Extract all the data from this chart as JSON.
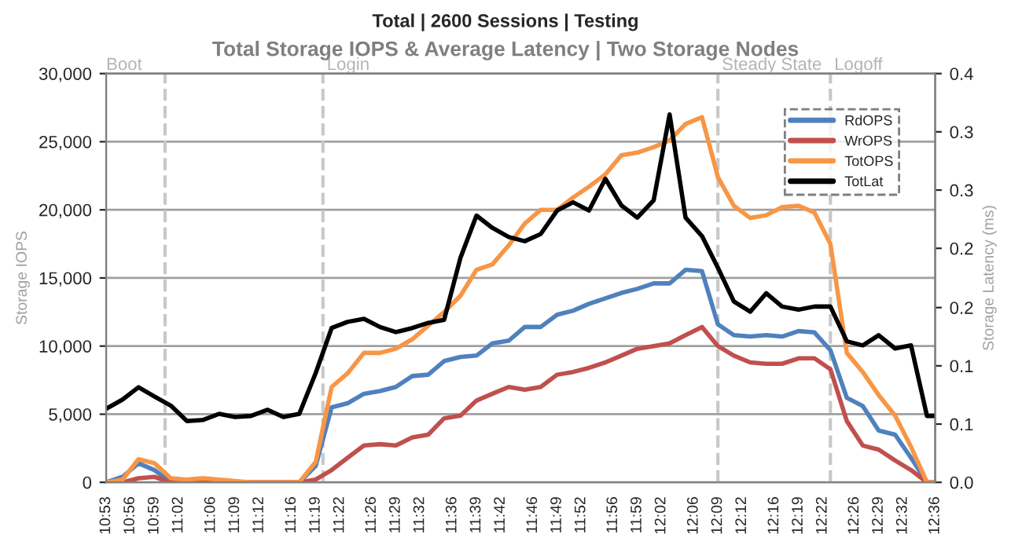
{
  "chart_data": {
    "type": "line",
    "title": "Total | 2600 Sessions | Testing",
    "subtitle": "Total Storage IOPS & Average Latency | Two Storage Nodes",
    "ylabel": "Storage IOPS",
    "y2label": "Storage Latency (ms)",
    "x": [
      10.883,
      10.917,
      10.95,
      10.983,
      11.017,
      11.05,
      11.083,
      11.117,
      11.15,
      11.183,
      11.217,
      11.25,
      11.283,
      11.317,
      11.35,
      11.383,
      11.417,
      11.45,
      11.483,
      11.517,
      11.55,
      11.583,
      11.617,
      11.65,
      11.683,
      11.717,
      11.75,
      11.783,
      11.817,
      11.85,
      11.883,
      11.917,
      11.95,
      11.983,
      12.017,
      12.05,
      12.083,
      12.117,
      12.15,
      12.183,
      12.217,
      12.25,
      12.283,
      12.317,
      12.35,
      12.383,
      12.417,
      12.45,
      12.483,
      12.517,
      12.55,
      12.583,
      12.6
    ],
    "series": [
      {
        "name": "RdOPS",
        "color": "#4f81bd",
        "values": [
          0,
          400,
          1400,
          900,
          0,
          0,
          0,
          0,
          0,
          0,
          0,
          0,
          0,
          1200,
          5500,
          5800,
          6500,
          6700,
          7000,
          7800,
          7900,
          8900,
          9200,
          9300,
          10200,
          10400,
          11400,
          11400,
          12300,
          12600,
          13100,
          13500,
          13900,
          14200,
          14600,
          14600,
          15600,
          15500,
          11600,
          10800,
          10700,
          10800,
          10700,
          11100,
          11000,
          9700,
          6200,
          5600,
          3800,
          3500,
          1800,
          0,
          0
        ]
      },
      {
        "name": "WrOPS",
        "color": "#c0504d",
        "values": [
          0,
          0,
          300,
          400,
          0,
          0,
          0,
          0,
          0,
          0,
          0,
          0,
          0,
          200,
          900,
          1800,
          2700,
          2800,
          2700,
          3300,
          3500,
          4700,
          4900,
          6000,
          6500,
          7000,
          6800,
          7000,
          7900,
          8100,
          8400,
          8800,
          9300,
          9800,
          10000,
          10200,
          10800,
          11400,
          10000,
          9300,
          8800,
          8700,
          8700,
          9100,
          9100,
          8300,
          4500,
          2700,
          2400,
          1600,
          900,
          0,
          0
        ]
      },
      {
        "name": "TotOPS",
        "color": "#f79646",
        "values": [
          0,
          200,
          1700,
          1400,
          300,
          200,
          300,
          200,
          100,
          0,
          0,
          0,
          0,
          1500,
          7000,
          8000,
          9500,
          9500,
          9800,
          10500,
          11500,
          12500,
          13700,
          15600,
          16000,
          17400,
          19000,
          20000,
          20000,
          20900,
          21700,
          22600,
          24000,
          24200,
          24600,
          25100,
          26300,
          26800,
          22400,
          20300,
          19400,
          19600,
          20200,
          20300,
          19800,
          17500,
          9500,
          8100,
          6400,
          4900,
          2600,
          0,
          0
        ]
      },
      {
        "name": "TotLat",
        "color": "#000000",
        "axis": "y2",
        "values": [
          0.072,
          0.081,
          0.093,
          0.084,
          0.075,
          0.06,
          0.061,
          0.067,
          0.064,
          0.065,
          0.071,
          0.064,
          0.067,
          0.107,
          0.151,
          0.157,
          0.16,
          0.152,
          0.147,
          0.151,
          0.156,
          0.159,
          0.22,
          0.261,
          0.249,
          0.24,
          0.236,
          0.243,
          0.266,
          0.274,
          0.266,
          0.297,
          0.271,
          0.259,
          0.276,
          0.36,
          0.259,
          0.241,
          0.21,
          0.177,
          0.167,
          0.185,
          0.172,
          0.169,
          0.172,
          0.172,
          0.138,
          0.134,
          0.144,
          0.131,
          0.134,
          0.065,
          0.065
        ]
      }
    ],
    "xlim": [
      10.883,
      12.6
    ],
    "xticks": [
      {
        "value": 10.883,
        "label": "10:53"
      },
      {
        "value": 10.933,
        "label": "10:56"
      },
      {
        "value": 10.983,
        "label": "10:59"
      },
      {
        "value": 11.033,
        "label": "11:02"
      },
      {
        "value": 11.1,
        "label": "11:06"
      },
      {
        "value": 11.15,
        "label": "11:09"
      },
      {
        "value": 11.2,
        "label": "11:12"
      },
      {
        "value": 11.267,
        "label": "11:16"
      },
      {
        "value": 11.317,
        "label": "11:19"
      },
      {
        "value": 11.367,
        "label": "11:22"
      },
      {
        "value": 11.433,
        "label": "11:26"
      },
      {
        "value": 11.483,
        "label": "11:29"
      },
      {
        "value": 11.533,
        "label": "11:32"
      },
      {
        "value": 11.6,
        "label": "11:36"
      },
      {
        "value": 11.65,
        "label": "11:39"
      },
      {
        "value": 11.7,
        "label": "11:42"
      },
      {
        "value": 11.767,
        "label": "11:46"
      },
      {
        "value": 11.817,
        "label": "11:49"
      },
      {
        "value": 11.867,
        "label": "11:52"
      },
      {
        "value": 11.933,
        "label": "11:56"
      },
      {
        "value": 11.983,
        "label": "11:59"
      },
      {
        "value": 12.033,
        "label": "12:02"
      },
      {
        "value": 12.1,
        "label": "12:06"
      },
      {
        "value": 12.15,
        "label": "12:09"
      },
      {
        "value": 12.2,
        "label": "12:12"
      },
      {
        "value": 12.267,
        "label": "12:16"
      },
      {
        "value": 12.317,
        "label": "12:19"
      },
      {
        "value": 12.367,
        "label": "12:22"
      },
      {
        "value": 12.433,
        "label": "12:26"
      },
      {
        "value": 12.483,
        "label": "12:29"
      },
      {
        "value": 12.533,
        "label": "12:32"
      },
      {
        "value": 12.6,
        "label": "12:36"
      }
    ],
    "ylim": [
      0,
      30000
    ],
    "yticks": [
      {
        "value": 0,
        "label": "0"
      },
      {
        "value": 5000,
        "label": "5,000"
      },
      {
        "value": 10000,
        "label": "10,000"
      },
      {
        "value": 15000,
        "label": "15,000"
      },
      {
        "value": 20000,
        "label": "20,000"
      },
      {
        "value": 25000,
        "label": "25,000"
      },
      {
        "value": 30000,
        "label": "30,000"
      }
    ],
    "y2lim": [
      0,
      0.4
    ],
    "y2ticks": [
      {
        "value": 0,
        "label": "0.0"
      },
      {
        "value": 0.057,
        "label": "0.1"
      },
      {
        "value": 0.114,
        "label": "0.1"
      },
      {
        "value": 0.171,
        "label": "0.2"
      },
      {
        "value": 0.229,
        "label": "0.2"
      },
      {
        "value": 0.286,
        "label": "0.3"
      },
      {
        "value": 0.343,
        "label": "0.3"
      },
      {
        "value": 0.4,
        "label": "0.4"
      }
    ],
    "annotations": [
      "Boot"
    ],
    "ref_lines": [
      {
        "axis": "x",
        "value": 11.005,
        "color": "#c8c8c8",
        "line_style": "dashed"
      },
      {
        "axis": "x",
        "value": 11.332,
        "label": "Login",
        "color": "#c8c8c8",
        "line_style": "dashed"
      },
      {
        "axis": "x",
        "value": 12.15,
        "label": "Steady State",
        "color": "#c8c8c8",
        "line_style": "dashed"
      },
      {
        "axis": "x",
        "value": 12.383,
        "label": "Logoff",
        "color": "#c8c8c8",
        "line_style": "dashed"
      }
    ],
    "grid": "y",
    "legend": "top right",
    "marker": "none",
    "line_style": "solid"
  }
}
